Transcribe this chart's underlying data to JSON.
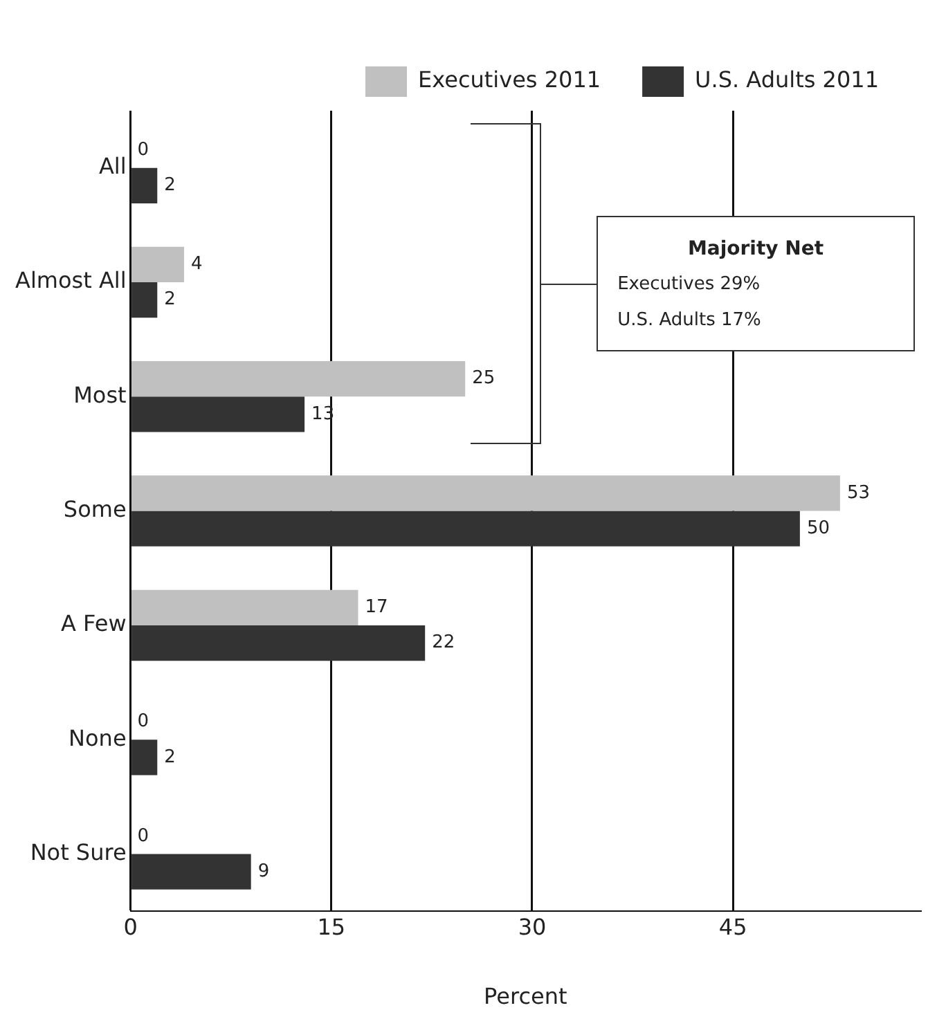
{
  "chart_data": {
    "type": "bar",
    "orientation": "horizontal",
    "xlabel": "Percent",
    "categories": [
      "All",
      "Almost All",
      "Most",
      "Some",
      "A Few",
      "None",
      "Not Sure"
    ],
    "series": [
      {
        "name": "Executives 2011",
        "color": "#c0c0c0",
        "values": [
          0,
          4,
          25,
          53,
          17,
          0,
          0
        ]
      },
      {
        "name": "U.S. Adults 2011",
        "color": "#333333",
        "values": [
          2,
          2,
          13,
          50,
          22,
          2,
          9
        ]
      }
    ],
    "xlim": [
      0,
      59
    ],
    "xticks": [
      0,
      15,
      30,
      45
    ],
    "grid": "x",
    "legend": "top right",
    "data_labels": true,
    "annotations": [
      "Majority Net",
      "Executives 29%",
      "U.S. Adults 17%"
    ]
  }
}
